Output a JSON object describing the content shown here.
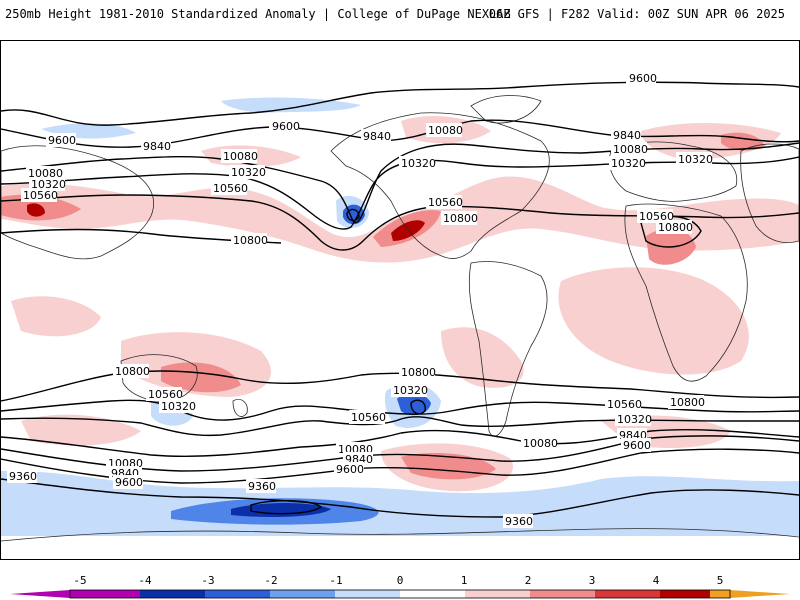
{
  "header": {
    "left_title": "250mb Height 1981-2010 Standardized Anomaly | College of DuPage NEXLAB",
    "right_title": "06Z GFS | F282 Valid: 00Z SUN APR 06 2025"
  },
  "contour_labels": {
    "c9600": "9600",
    "c9840": "9840",
    "c10080": "10080",
    "c10320": "10320",
    "c10560": "10560",
    "c10800": "10800",
    "c9360": "9360"
  },
  "colorbar": {
    "ticks": [
      "-5",
      "-4",
      "-3",
      "-2",
      "-1",
      "0",
      "1",
      "2",
      "3",
      "4",
      "5"
    ],
    "colors": {
      "n5": "#b000b0",
      "n4": "#0a2fa8",
      "n3": "#2c5fd8",
      "n2": "#6fa0ef",
      "n1": "#c6dcfb",
      "zero": "#ffffff",
      "p1": "#f9d0d0",
      "p2": "#f08c8c",
      "p3": "#d93838",
      "p4": "#b00000",
      "p5": "#f0a020"
    }
  }
}
